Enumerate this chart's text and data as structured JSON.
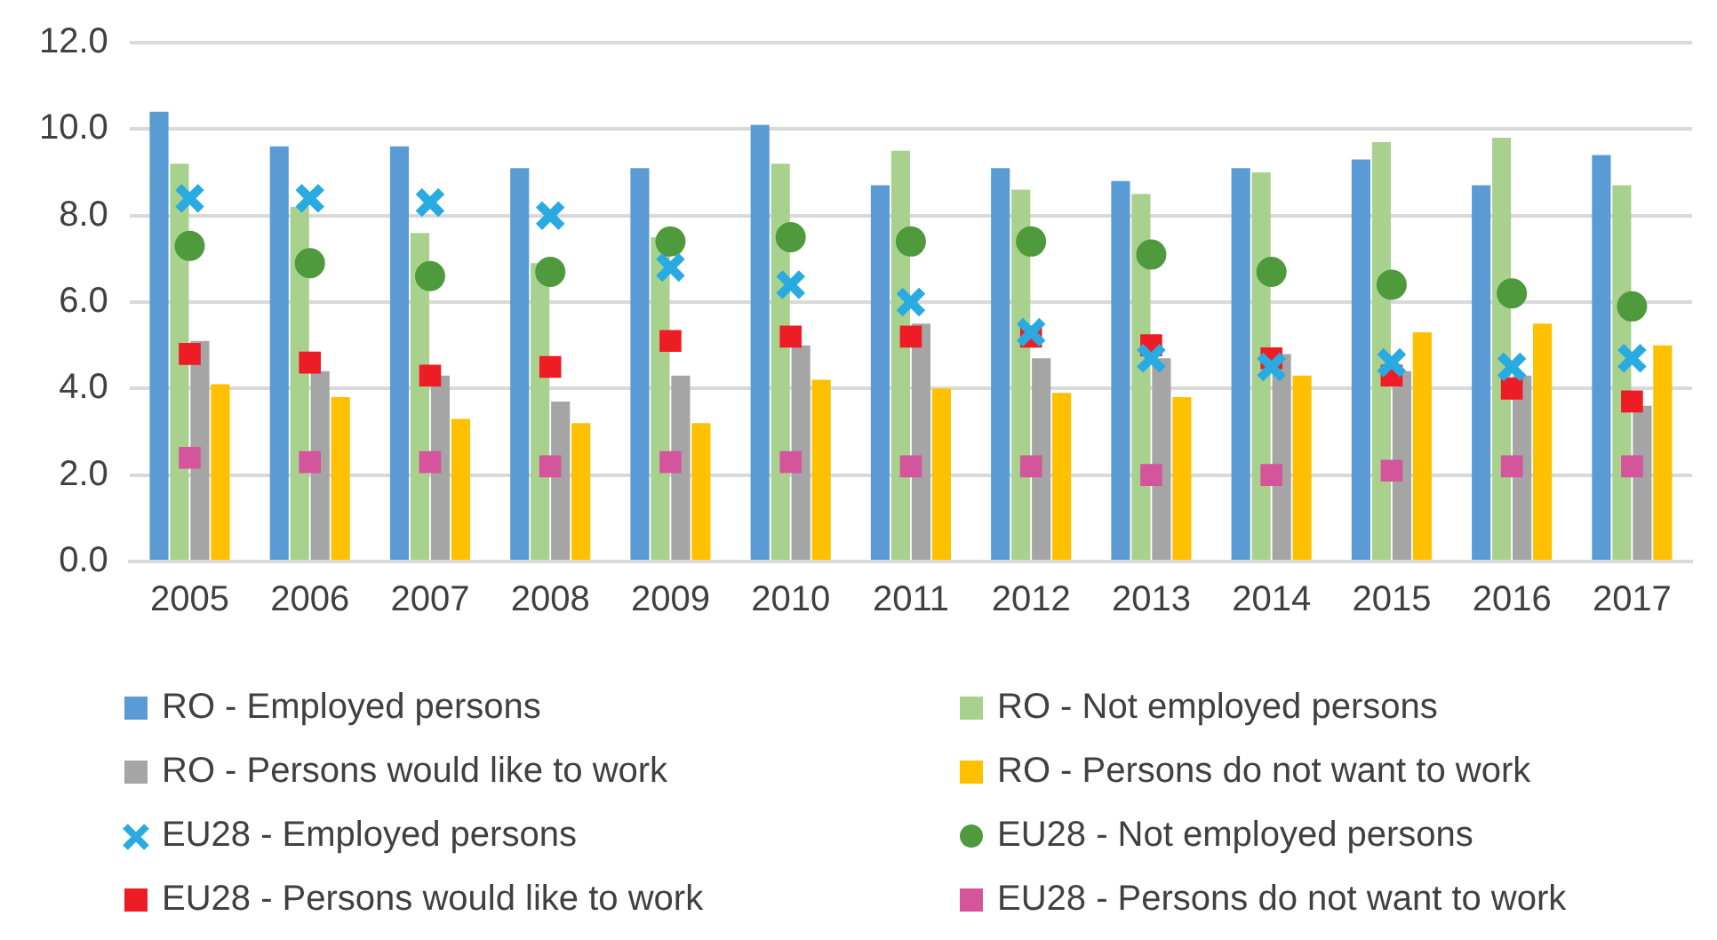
{
  "chart_data": {
    "type": "bar",
    "categories": [
      "2005",
      "2006",
      "2007",
      "2008",
      "2009",
      "2010",
      "2011",
      "2012",
      "2013",
      "2014",
      "2015",
      "2016",
      "2017"
    ],
    "ylim": [
      0,
      12
    ],
    "yticks": [
      {
        "value": 0,
        "label": "0.0"
      },
      {
        "value": 2,
        "label": "2.0"
      },
      {
        "value": 4,
        "label": "4.0"
      },
      {
        "value": 6,
        "label": "6.0"
      },
      {
        "value": 8,
        "label": "8.0"
      },
      {
        "value": 10,
        "label": "10.0"
      },
      {
        "value": 12,
        "label": "12.0"
      }
    ],
    "grid": "y",
    "legend": "bottom",
    "series": [
      {
        "name": "RO - Employed persons",
        "color": "#5b9bd5",
        "values": [
          10.4,
          9.6,
          9.6,
          9.1,
          9.1,
          10.1,
          8.7,
          9.1,
          8.8,
          9.1,
          9.3,
          8.7,
          9.4
        ]
      },
      {
        "name": "RO - Not employed persons",
        "color": "#a9d18e",
        "values": [
          9.2,
          8.2,
          7.6,
          6.9,
          7.5,
          9.2,
          9.5,
          8.6,
          8.5,
          9.0,
          9.7,
          9.8,
          8.7
        ]
      },
      {
        "name": "RO - Persons would like to work",
        "color": "#a5a5a5",
        "values": [
          5.1,
          4.4,
          4.3,
          3.7,
          4.3,
          5.0,
          5.5,
          4.7,
          4.7,
          4.8,
          4.4,
          4.3,
          3.6
        ]
      },
      {
        "name": "RO - Persons do not want to work",
        "color": "#ffc000",
        "values": [
          4.1,
          3.8,
          3.3,
          3.2,
          3.2,
          4.2,
          4.0,
          3.9,
          3.8,
          4.3,
          5.3,
          5.5,
          5.0
        ]
      },
      {
        "name": "EU28 - Employed persons",
        "type": "scatter",
        "marker": "cross",
        "color": "#29abe2",
        "values": [
          8.4,
          8.4,
          8.3,
          8.0,
          6.8,
          6.4,
          6.0,
          5.3,
          4.7,
          4.5,
          4.6,
          4.5,
          4.7
        ]
      },
      {
        "name": "EU28 - Not employed persons",
        "type": "scatter",
        "marker": "circle",
        "color": "#4e9a3c",
        "values": [
          7.3,
          6.9,
          6.6,
          6.7,
          7.4,
          7.5,
          7.4,
          7.4,
          7.1,
          6.7,
          6.4,
          6.2,
          5.9
        ]
      },
      {
        "name": "EU28 - Persons would like to work",
        "type": "scatter",
        "marker": "square",
        "color": "#ee1c25",
        "values": [
          4.8,
          4.6,
          4.3,
          4.5,
          5.1,
          5.2,
          5.2,
          5.2,
          5.0,
          4.7,
          4.3,
          4.0,
          3.7
        ]
      },
      {
        "name": "EU28 - Persons do not want to work",
        "type": "scatter",
        "marker": "square",
        "color": "#d4559c",
        "values": [
          2.4,
          2.3,
          2.3,
          2.2,
          2.3,
          2.3,
          2.2,
          2.2,
          2.0,
          2.0,
          2.1,
          2.2,
          2.2
        ]
      }
    ]
  }
}
